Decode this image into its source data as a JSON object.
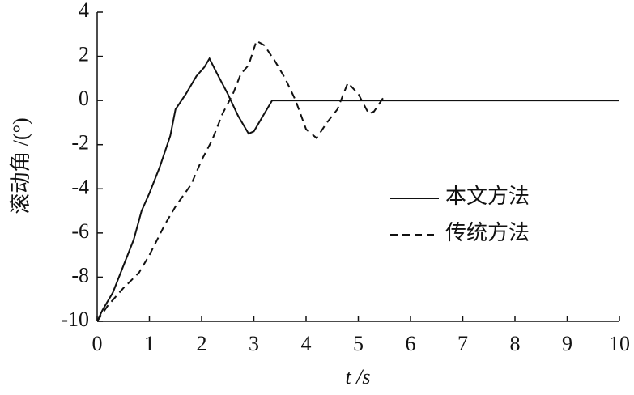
{
  "chart_data": {
    "type": "line",
    "xlabel": "t /s",
    "ylabel": "滚动角 /(°)",
    "xlim": [
      0,
      10
    ],
    "xticks": [
      0,
      1,
      2,
      3,
      4,
      5,
      6,
      7,
      8,
      9,
      10
    ],
    "ylim": [
      -10,
      4
    ],
    "yticks": [
      -10,
      -8,
      -6,
      -4,
      -2,
      0,
      2,
      4
    ],
    "legend": "center-right",
    "series": [
      {
        "name": "本文方法",
        "color": "#111111",
        "dash": "solid",
        "x": [
          0,
          0.1,
          0.3,
          0.5,
          0.7,
          0.85,
          1.0,
          1.2,
          1.4,
          1.5,
          1.7,
          1.9,
          2.05,
          2.15,
          2.3,
          2.5,
          2.7,
          2.9,
          3.0,
          3.1,
          3.2,
          3.35,
          10
        ],
        "values": [
          -10,
          -9.5,
          -8.7,
          -7.5,
          -6.3,
          -5,
          -4.2,
          -3,
          -1.6,
          -0.4,
          0.3,
          1.1,
          1.5,
          1.9,
          1.2,
          0.3,
          -0.7,
          -1.5,
          -1.4,
          -1.0,
          -0.6,
          0,
          0
        ]
      },
      {
        "name": "传统方法",
        "color": "#111111",
        "dash": "dashed",
        "x": [
          0,
          0.2,
          0.5,
          0.8,
          1.0,
          1.3,
          1.5,
          1.8,
          2.0,
          2.2,
          2.4,
          2.6,
          2.75,
          2.9,
          3.05,
          3.2,
          3.4,
          3.6,
          3.8,
          4.0,
          4.2,
          4.4,
          4.6,
          4.8,
          5.0,
          5.2,
          5.3,
          5.5
        ],
        "values": [
          -10,
          -9.3,
          -8.5,
          -7.8,
          -7,
          -5.6,
          -4.8,
          -3.8,
          -2.7,
          -1.8,
          -0.6,
          0.3,
          1.2,
          1.6,
          2.7,
          2.5,
          1.8,
          1.0,
          0,
          -1.3,
          -1.7,
          -1.0,
          -0.4,
          0.8,
          0.3,
          -0.6,
          -0.5,
          0.2
        ]
      }
    ]
  }
}
